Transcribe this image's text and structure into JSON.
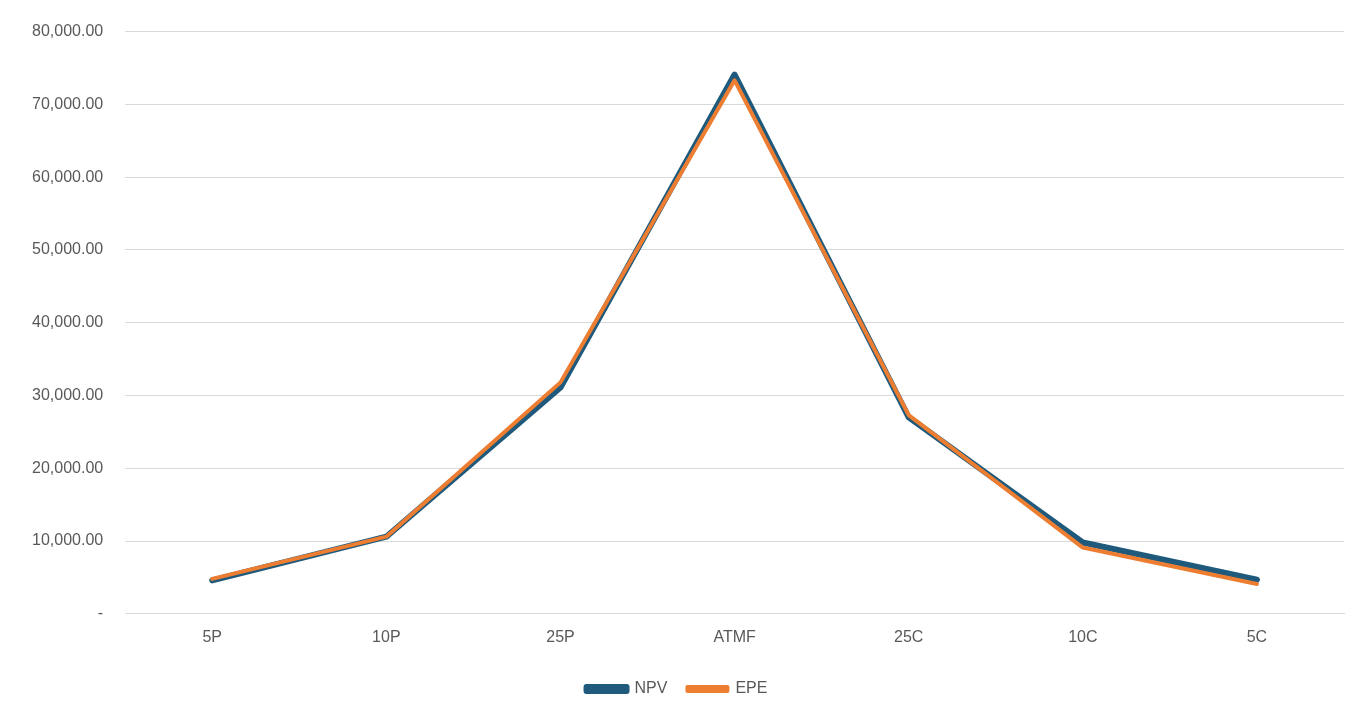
{
  "chart_data": {
    "type": "line",
    "categories": [
      "5P",
      "10P",
      "25P",
      "ATMF",
      "25C",
      "10C",
      "5C"
    ],
    "series": [
      {
        "name": "NPV",
        "color": "#1f5a7c",
        "values": [
          4600,
          10600,
          31100,
          74100,
          27000,
          9800,
          4700
        ]
      },
      {
        "name": "EPE",
        "color": "#ed7d31",
        "values": [
          4800,
          10600,
          31800,
          73300,
          27300,
          9100,
          4100
        ]
      }
    ],
    "ylim": [
      0,
      80000
    ],
    "yticks": [
      {
        "value": 0,
        "label": "-"
      },
      {
        "value": 10000,
        "label": "10,000.00"
      },
      {
        "value": 20000,
        "label": "20,000.00"
      },
      {
        "value": 30000,
        "label": "30,000.00"
      },
      {
        "value": 40000,
        "label": "40,000.00"
      },
      {
        "value": 50000,
        "label": "50,000.00"
      },
      {
        "value": 60000,
        "label": "60,000.00"
      },
      {
        "value": 70000,
        "label": "70,000.00"
      },
      {
        "value": 80000,
        "label": "80,000.00"
      }
    ],
    "grid": "y",
    "legend": "bottom",
    "marker": "none",
    "line_style": "solid"
  }
}
